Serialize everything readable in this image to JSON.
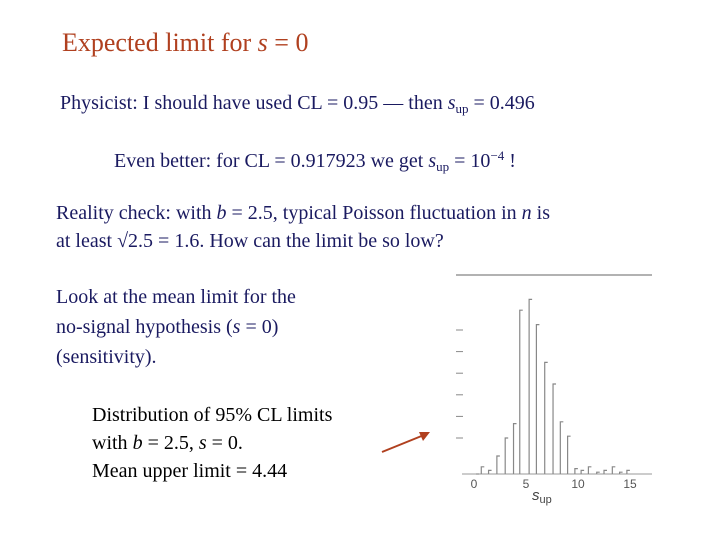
{
  "slide": {
    "title": "Expected limit for s = 0",
    "title_parts": {
      "prefix": "Expected limit for ",
      "var": "s",
      "suffix": " = 0"
    },
    "line1": {
      "prefix": "Physicist:  I should have used CL = 0.95 — then ",
      "var": "s",
      "sub": "up",
      "suffix": " = 0.496"
    },
    "line2": {
      "prefix": "Even better:  for CL = 0.917923 we get ",
      "var": "s",
      "sub": "up",
      "mid": " = 10",
      "sup": "−4",
      "suffix": " !"
    },
    "line3": {
      "prefix": "Reality check:  with ",
      "var_b": "b",
      "mid1": " = 2.5, typical Poisson fluctuation in ",
      "var_n": "n",
      "suffix": " is"
    },
    "line4": {
      "text": "at least √2.5 = 1.6.  How can the limit be so low?"
    },
    "para2": {
      "l1": "Look at the mean limit for the",
      "l2_prefix": "no-signal hypothesis (",
      "l2_var": "s",
      "l2_suffix": " = 0)",
      "l3": "(sensitivity)."
    },
    "para3": {
      "l1": "Distribution of 95% CL limits",
      "l2_prefix": "with ",
      "l2_var_b": "b",
      "l2_mid": " = 2.5, ",
      "l2_var_s": "s",
      "l2_suffix": " = 0.",
      "l3": "Mean upper limit = 4.44"
    }
  },
  "chart_data": {
    "type": "bar",
    "xlabel": "s",
    "xlabel_sub": "up",
    "xlim": [
      0,
      15
    ],
    "xticks": [
      0,
      5,
      10,
      15
    ],
    "xtick_labels": [
      "0",
      "5",
      "10",
      "15"
    ],
    "x": [
      0.2,
      0.7,
      1.4,
      2.2,
      3.0,
      3.8,
      4.4,
      5.3,
      6.0,
      6.8,
      7.6,
      8.3,
      9.0,
      9.7,
      10.3,
      11.0,
      11.8,
      12.5,
      13.3,
      14.0,
      14.7
    ],
    "values": [
      0.0,
      0.04,
      0.02,
      0.1,
      0.2,
      0.28,
      0.91,
      0.97,
      0.83,
      0.62,
      0.5,
      0.29,
      0.21,
      0.03,
      0.02,
      0.04,
      0.01,
      0.02,
      0.04,
      0.01,
      0.02
    ],
    "color": "#888888"
  }
}
